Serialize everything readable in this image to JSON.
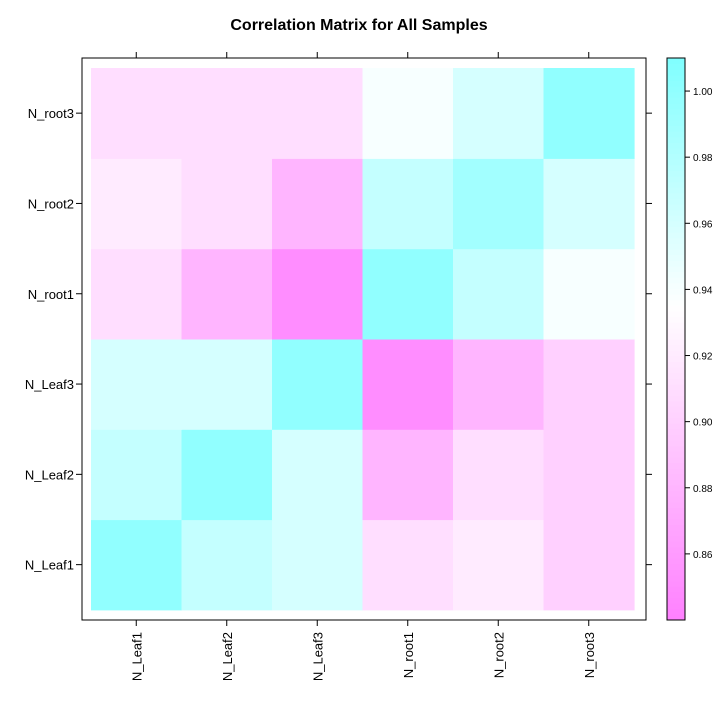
{
  "chart_data": {
    "type": "heatmap",
    "title": "Correlation Matrix for All Samples",
    "x_categories": [
      "N_Leaf1",
      "N_Leaf2",
      "N_Leaf3",
      "N_root1",
      "N_root2",
      "N_root3"
    ],
    "y_categories": [
      "N_Leaf1",
      "N_Leaf2",
      "N_Leaf3",
      "N_root1",
      "N_root2",
      "N_root3"
    ],
    "values": [
      [
        1.0,
        0.97,
        0.96,
        0.91,
        0.92,
        0.9
      ],
      [
        0.97,
        1.0,
        0.96,
        0.88,
        0.91,
        0.9
      ],
      [
        0.96,
        0.96,
        1.0,
        0.85,
        0.88,
        0.9
      ],
      [
        0.91,
        0.88,
        0.85,
        1.0,
        0.97,
        0.94
      ],
      [
        0.92,
        0.91,
        0.88,
        0.97,
        0.99,
        0.96
      ],
      [
        0.91,
        0.91,
        0.91,
        0.94,
        0.96,
        1.0
      ]
    ],
    "colorbar": {
      "range": [
        0.84,
        1.01
      ],
      "ticks": [
        0.86,
        0.88,
        0.9,
        0.92,
        0.94,
        0.96,
        0.98,
        1.0
      ],
      "tick_labels": [
        "0.86",
        "0.88",
        "0.90",
        "0.92",
        "0.94",
        "0.96",
        "0.98",
        "1.00"
      ],
      "low_color": "#ff80ff",
      "mid_color": "#ffffff",
      "high_color": "#80ffff",
      "mid_value": 0.935
    }
  }
}
